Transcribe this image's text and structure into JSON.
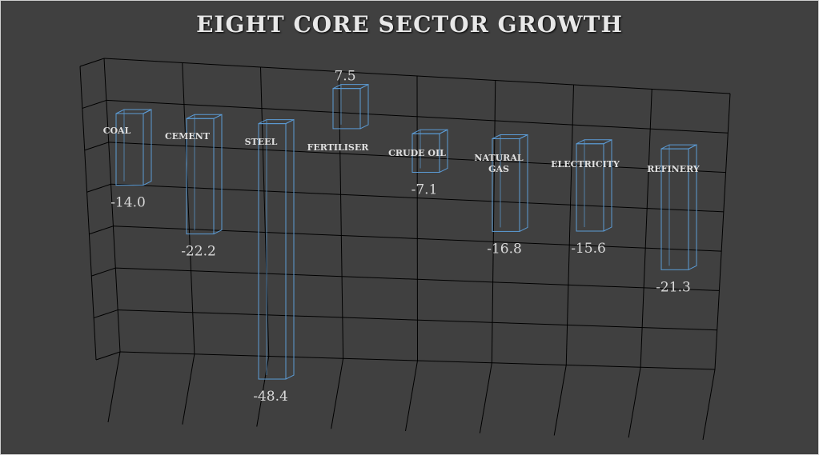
{
  "chart_data": {
    "type": "bar",
    "title": "EIGHT CORE SECTOR GROWTH",
    "categories": [
      "COAL",
      "CEMENT",
      "STEEL",
      "FERTILISER",
      "CRUDE OIL",
      "NATURAL GAS",
      "ELECTRICITY",
      "REFINERY"
    ],
    "values": [
      -14.0,
      -22.2,
      -48.4,
      7.5,
      -7.1,
      -16.8,
      -15.6,
      -21.3
    ],
    "value_labels": [
      "-14.0",
      "-22.2",
      "-48.4",
      "7.5",
      "-7.1",
      "-16.8",
      "-15.6",
      "-21.3"
    ],
    "xlabel": "",
    "ylabel": "",
    "style": "3d-wireframe",
    "colors": {
      "background": "#404040",
      "bar_outline": "#5b9bd5",
      "grid": "#000000",
      "text": "#d9d9d9"
    }
  }
}
